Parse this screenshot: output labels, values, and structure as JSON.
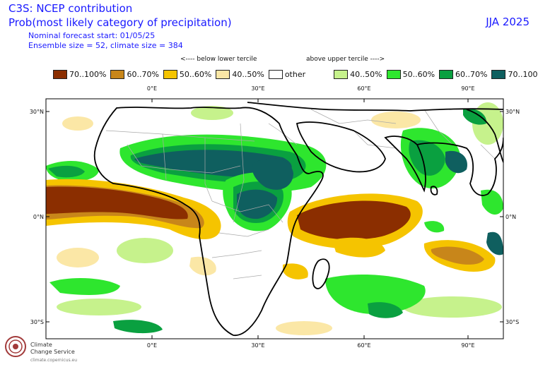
{
  "header": {
    "title": "C3S: NCEP contribution",
    "subtitle": "Prob(most likely category of precipitation)",
    "forecast_start": "Nominal forecast start: 01/05/25",
    "ensemble": "Ensemble size = 52, climate size = 384",
    "season": "JJA 2025"
  },
  "legend": {
    "below_note": "<---- below lower tercile",
    "above_note": "above upper tercile ---->",
    "items": [
      {
        "label": "70..100%",
        "color": "#8b2e00"
      },
      {
        "label": "60..70%",
        "color": "#c8861a"
      },
      {
        "label": "50..60%",
        "color": "#f5c400"
      },
      {
        "label": "40..50%",
        "color": "#fbe7a6"
      },
      {
        "label": "other",
        "color": "#ffffff"
      },
      {
        "label": "40..50%",
        "color": "#c6f28c"
      },
      {
        "label": "50..60%",
        "color": "#2ee62e"
      },
      {
        "label": "60..70%",
        "color": "#0aa040"
      },
      {
        "label": "70..100%",
        "color": "#0f5f5f"
      }
    ]
  },
  "axes": {
    "lon_ticks": [
      "0°E",
      "30°E",
      "60°E",
      "90°E"
    ],
    "lat_ticks": [
      "30°N",
      "0°N",
      "30°S"
    ]
  },
  "logo": {
    "line1": "Climate",
    "line2": "Change Service",
    "url": "climate.copernicus.eu"
  }
}
